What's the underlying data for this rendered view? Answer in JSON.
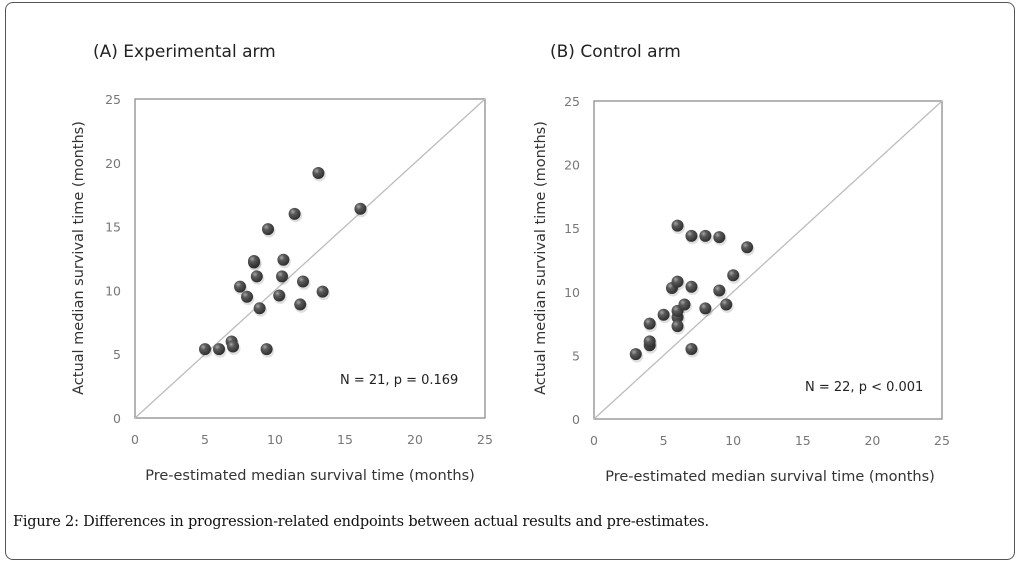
{
  "caption": {
    "label": "Figure 2:",
    "text": " Differences in progression-related endpoints between actual results and pre-estimates."
  },
  "colors": {
    "point": "#4a4a4a",
    "point_highlight": "#9a9a9a",
    "axis": "#8c8c8c",
    "identity_line": "#bcbcbc"
  },
  "chart_data": [
    {
      "type": "scatter",
      "title": "(A) Experimental arm",
      "xlabel": "Pre-estimated median survival time (months)",
      "ylabel": "Actual median survival time  (months)",
      "xlim": [
        0,
        25
      ],
      "ylim": [
        0,
        25
      ],
      "xticks": [
        "0",
        "5",
        "10",
        "15",
        "20",
        "25"
      ],
      "yticks": [
        "0",
        "5",
        "10",
        "15",
        "20",
        "25"
      ],
      "reference_line": "y = x",
      "grid": false,
      "annotation": "N = 21,  p = 0.169",
      "annotation_placement": "bottom-right",
      "points": [
        [
          5.0,
          5.4
        ],
        [
          6.0,
          5.4
        ],
        [
          6.9,
          6.0
        ],
        [
          7.0,
          5.6
        ],
        [
          9.4,
          5.4
        ],
        [
          8.9,
          8.6
        ],
        [
          7.5,
          10.3
        ],
        [
          8.0,
          9.5
        ],
        [
          8.7,
          11.1
        ],
        [
          10.3,
          9.6
        ],
        [
          10.5,
          11.1
        ],
        [
          13.1,
          19.2
        ],
        [
          16.1,
          16.4
        ],
        [
          11.4,
          16.0
        ],
        [
          9.5,
          14.8
        ],
        [
          8.5,
          12.2
        ],
        [
          8.5,
          12.3
        ],
        [
          10.6,
          12.4
        ],
        [
          12.0,
          10.7
        ],
        [
          13.4,
          9.9
        ],
        [
          11.8,
          8.9
        ]
      ]
    },
    {
      "type": "scatter",
      "title": "(B) Control arm",
      "xlabel": "Pre-estimated median survival time (months)",
      "ylabel": "Actual median survival time  (months)",
      "xlim": [
        0,
        25
      ],
      "ylim": [
        0,
        25
      ],
      "xticks": [
        "0",
        "5",
        "10",
        "15",
        "20",
        "25"
      ],
      "yticks": [
        "0",
        "5",
        "10",
        "15",
        "20",
        "25"
      ],
      "reference_line": "y = x",
      "grid": false,
      "annotation": "N = 22,  p < 0.001",
      "annotation_placement": "bottom-right",
      "points": [
        [
          3.0,
          5.1
        ],
        [
          4.0,
          5.8
        ],
        [
          4.0,
          6.1
        ],
        [
          4.0,
          7.5
        ],
        [
          5.0,
          8.2
        ],
        [
          6.0,
          8.0
        ],
        [
          6.0,
          8.5
        ],
        [
          6.0,
          7.3
        ],
        [
          5.6,
          10.3
        ],
        [
          6.0,
          10.8
        ],
        [
          6.0,
          15.2
        ],
        [
          6.5,
          9.0
        ],
        [
          7.0,
          10.4
        ],
        [
          7.0,
          5.5
        ],
        [
          7.0,
          14.4
        ],
        [
          8.0,
          14.4
        ],
        [
          8.0,
          8.7
        ],
        [
          9.0,
          14.3
        ],
        [
          9.0,
          10.1
        ],
        [
          9.5,
          9.0
        ],
        [
          10.0,
          11.3
        ],
        [
          11.0,
          13.5
        ]
      ]
    }
  ]
}
